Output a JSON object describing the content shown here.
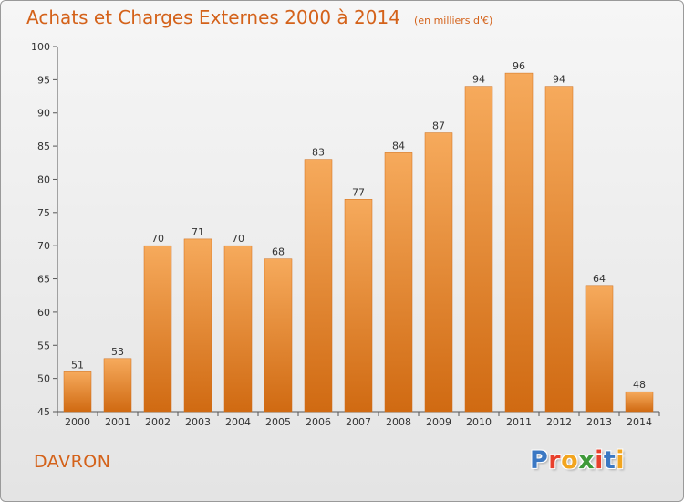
{
  "header": {
    "title": "Achats et Charges Externes 2000 à 2014",
    "subtitle": "(en milliers d'€)"
  },
  "place": "DAVRON",
  "logo": {
    "text": "Proxiti",
    "letter_colors": [
      "#3b78c3",
      "#e8402c",
      "#f2a51f",
      "#3f9a3a",
      "#e8402c",
      "#3b78c3",
      "#f2a51f"
    ]
  },
  "chart_data": {
    "type": "bar",
    "categories": [
      "2000",
      "2001",
      "2002",
      "2003",
      "2004",
      "2005",
      "2006",
      "2007",
      "2008",
      "2009",
      "2010",
      "2011",
      "2012",
      "2013",
      "2014"
    ],
    "values": [
      51,
      53,
      70,
      71,
      70,
      68,
      83,
      77,
      84,
      87,
      94,
      96,
      94,
      64,
      48
    ],
    "data_labels": [
      "51",
      "53",
      "70",
      "71",
      "70",
      "68",
      "83",
      "77",
      "84",
      "87",
      "94",
      "96",
      "94",
      "64",
      "48"
    ],
    "title": "Achats et Charges Externes 2000 à 2014",
    "subtitle": "(en milliers d'€)",
    "xlabel": "",
    "ylabel": "",
    "ylim": [
      45,
      100
    ],
    "yticks": [
      45,
      50,
      55,
      60,
      65,
      70,
      75,
      80,
      85,
      90,
      95,
      100
    ],
    "ytick_labels": [
      "45",
      "50",
      "55",
      "60",
      "65",
      "70",
      "75",
      "80",
      "85",
      "90",
      "95",
      "100"
    ],
    "grid": false,
    "legend": "none",
    "bar_color": "#f08a30",
    "bar_color_light": "#f6aa5c",
    "bar_color_dark": "#d06a12"
  }
}
